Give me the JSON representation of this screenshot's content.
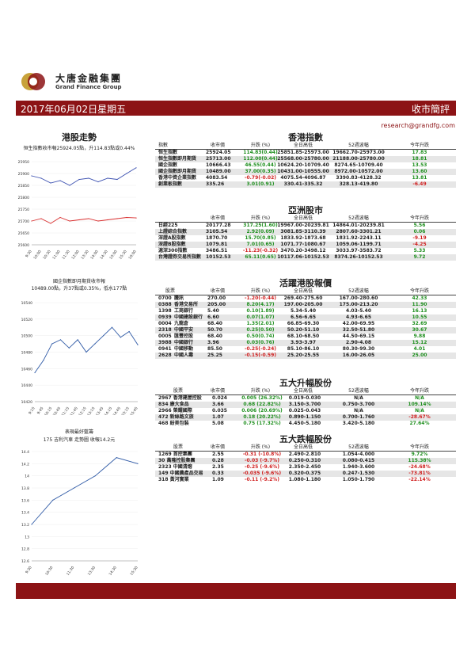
{
  "header": {
    "company_cn": "大唐金融集團",
    "company_en": "Grand Finance Group",
    "date": "2017年06月02日星期五",
    "report_title": "收市簡評",
    "email": "research@grandfg.com"
  },
  "left": {
    "hk_trend_title": "港股走勢",
    "hsi_caption": "恒生指數收市報25924.05點，升114.83點或0.44%",
    "chart1": {
      "ticks": [
        "25950",
        "25900",
        "25850",
        "25800",
        "25750",
        "25700",
        "25650",
        "25600"
      ],
      "xticks": [
        "9:30",
        "10:00",
        "10:30",
        "11:00",
        "11:30",
        "12:00",
        "13:30",
        "14:00",
        "14:30",
        "15:00",
        "15:30",
        "16:00"
      ],
      "colors": {
        "line1": "#3a4fb0",
        "line2": "#d93030"
      }
    },
    "hsce_caption1": "國企指數即月期貨收市報",
    "hsce_caption2": "10489.00點，升37點或0.35%，低水177點",
    "chart2": {
      "ticks": [
        "10540",
        "10520",
        "10500",
        "10480",
        "10460",
        "10440",
        "10420"
      ],
      "xticks": [
        "9:15",
        "9:45",
        "10:15",
        "10:45",
        "11:15",
        "11:45",
        "12:15",
        "13:15",
        "13:45",
        "14:15",
        "14:45",
        "15:15",
        "15:45"
      ]
    },
    "pick_caption1": "表現最好藍籌",
    "pick_caption2": "175 吉利汽車 走勢圖  收報14.2元",
    "chart3": {
      "ticks": [
        "14.4",
        "14.2",
        "14",
        "13.8",
        "13.6",
        "13.4",
        "13.2",
        "13",
        "12.8",
        "12.6"
      ],
      "xticks": [
        "9:30",
        "10:30",
        "11:30",
        "13:30",
        "14:30",
        "15:30"
      ]
    }
  },
  "hk_index": {
    "title": "香港指數",
    "headers": [
      "指數",
      "收市價",
      "升跌 (%)",
      "全日高低",
      "52週波幅",
      "今年升跌"
    ],
    "rows": [
      {
        "name": "恒生指數",
        "close": "25924.05",
        "chg": "114.83(0.44)",
        "range": "25851.85-25973.00",
        "w52": "19662.70-25973.00",
        "ytd": "17.83",
        "dir": "up",
        "ytddir": "up"
      },
      {
        "name": "恒生指數即月期貨",
        "close": "25713.00",
        "chg": "112.00(0.44)",
        "range": "25568.00-25780.00",
        "w52": "21188.00-25780.00",
        "ytd": "18.81",
        "dir": "up",
        "ytddir": "up"
      },
      {
        "name": "國企指數",
        "close": "10666.43",
        "chg": "46.55(0.44)",
        "range": "10624.20-10709.40",
        "w52": "8274.65-10709.40",
        "ytd": "13.53",
        "dir": "up",
        "ytddir": "up"
      },
      {
        "name": "國企指數即月期貨",
        "close": "10489.00",
        "chg": "37.00(0.35)",
        "range": "10431.00-10555.00",
        "w52": "8972.00-10572.00",
        "ytd": "13.60",
        "dir": "up",
        "ytddir": "up"
      },
      {
        "name": "香港中資企業指數",
        "close": "4083.54",
        "chg": "-0.79(-0.02)",
        "range": "4075.54-4096.87",
        "w52": "3390.83-4128.32",
        "ytd": "13.81",
        "dir": "dn",
        "ytddir": "up"
      },
      {
        "name": "創業板指數",
        "close": "335.26",
        "chg": "3.01(0.91)",
        "range": "330.41-335.32",
        "w52": "328.13-419.80",
        "ytd": "-6.49",
        "dir": "up",
        "ytddir": "dn"
      }
    ]
  },
  "asia": {
    "title": "亞洲股市",
    "headers": [
      "",
      "收市價",
      "升跌 (%)",
      "全日高低",
      "52週波幅",
      "今年升跌"
    ],
    "rows": [
      {
        "name": "日經225",
        "close": "20177.28",
        "chg": "317.25(1.60)",
        "range": "19967.00-20239.81",
        "w52": "14864.01-20239.81",
        "ytd": "5.56",
        "dir": "up",
        "ytddir": "up"
      },
      {
        "name": "上證綜合指數",
        "close": "3105.54",
        "chg": "2.92(0.09)",
        "range": "3081.85-3110.39",
        "w52": "2807.60-3301.21",
        "ytd": "0.06",
        "dir": "up",
        "ytddir": "up"
      },
      {
        "name": "深證A股指數",
        "close": "1870.70",
        "chg": "15.70(0.85)",
        "range": "1833.92-1873.68",
        "w52": "1831.92-2243.11",
        "ytd": "-9.19",
        "dir": "up",
        "ytddir": "dn"
      },
      {
        "name": "深證B股指數",
        "close": "1079.81",
        "chg": "7.01(0.65)",
        "range": "1071.77-1080.67",
        "w52": "1059.06-1199.71",
        "ytd": "-4.25",
        "dir": "up",
        "ytddir": "dn"
      },
      {
        "name": "滬深300指數",
        "close": "3486.51",
        "chg": "-11.23(-0.32)",
        "range": "3470.20-3498.12",
        "w52": "3033.97-3583.72",
        "ytd": "5.33",
        "dir": "dn",
        "ytddir": "up"
      },
      {
        "name": "台灣證券交易所指數",
        "close": "10152.53",
        "chg": "65.11(0.65)",
        "range": "10117.06-10152.53",
        "w52": "8374.26-10152.53",
        "ytd": "9.72",
        "dir": "up",
        "ytddir": "up"
      }
    ]
  },
  "active": {
    "title": "活躍港股報價",
    "headers": [
      "股票",
      "收市價",
      "升跌 (%)",
      "全日高低",
      "52週波幅",
      "今年升跌"
    ],
    "rows": [
      {
        "code": "0700",
        "name": "騰訊",
        "close": "270.00",
        "chg": "-1.20(-0.44)",
        "range": "269.40-275.60",
        "w52": "167.00-280.60",
        "ytd": "42.33",
        "dir": "dn",
        "ytddir": "up"
      },
      {
        "code": "0388",
        "name": "香港交易所",
        "close": "205.00",
        "chg": "8.20(4.17)",
        "range": "197.00-205.00",
        "w52": "175.00-213.20",
        "ytd": "11.90",
        "dir": "up",
        "ytddir": "up"
      },
      {
        "code": "1398",
        "name": "工商銀行",
        "close": "5.40",
        "chg": "0.10(1.89)",
        "range": "5.34-5.40",
        "w52": "4.03-5.40",
        "ytd": "16.13",
        "dir": "up",
        "ytddir": "up"
      },
      {
        "code": "0939",
        "name": "中國建設銀行",
        "close": "6.60",
        "chg": "0.07(1.07)",
        "range": "6.56-6.65",
        "w52": "4.93-6.65",
        "ytd": "10.55",
        "dir": "up",
        "ytddir": "up"
      },
      {
        "code": "0004",
        "name": "九龍倉",
        "close": "68.40",
        "chg": "1.35(2.01)",
        "range": "66.85-69.30",
        "w52": "42.00-69.95",
        "ytd": "32.69",
        "dir": "up",
        "ytddir": "up"
      },
      {
        "code": "2318",
        "name": "中國平安",
        "close": "50.70",
        "chg": "0.25(0.50)",
        "range": "50.20-51.10",
        "w52": "32.50-51.80",
        "ytd": "30.67",
        "dir": "up",
        "ytddir": "up"
      },
      {
        "code": "0005",
        "name": "匯豐控股",
        "close": "68.40",
        "chg": "0.50(0.74)",
        "range": "68.10-68.50",
        "w52": "44.50-69.15",
        "ytd": "9.88",
        "dir": "up",
        "ytddir": "up"
      },
      {
        "code": "3988",
        "name": "中國銀行",
        "close": "3.96",
        "chg": "0.03(0.76)",
        "range": "3.93-3.97",
        "w52": "2.90-4.08",
        "ytd": "15.12",
        "dir": "up",
        "ytddir": "up"
      },
      {
        "code": "0941",
        "name": "中國移動",
        "close": "85.50",
        "chg": "-0.25(-0.24)",
        "range": "85.10-86.10",
        "w52": "80.30-99.30",
        "ytd": "4.01",
        "dir": "dn",
        "ytddir": "up"
      },
      {
        "code": "2628",
        "name": "中國人壽",
        "close": "25.25",
        "chg": "-0.15(-0.59)",
        "range": "25.20-25.55",
        "w52": "16.00-26.05",
        "ytd": "25.00",
        "dir": "dn",
        "ytddir": "up"
      }
    ]
  },
  "gainers": {
    "title": "五大升幅股份",
    "headers": [
      "股票",
      "收市價",
      "升跌 (%)",
      "全日高低",
      "52週波幅",
      "今年升跌"
    ],
    "rows": [
      {
        "name": "2967 香港建屋控股",
        "close": "0.024",
        "chg": "0.005 (26.32%)",
        "range": "0.019-0.030",
        "w52": "N/A",
        "ytd": "N/A",
        "dir": "up",
        "ytddir": "up"
      },
      {
        "name": "834 康大食品",
        "close": "3.66",
        "chg": "0.68 (22.82%)",
        "range": "3.150-3.700",
        "w52": "0.750-3.700",
        "ytd": "109.14%",
        "dir": "up",
        "ytddir": "up"
      },
      {
        "name": "2966 榮耀國際",
        "close": "0.035",
        "chg": "0.006 (20.69%)",
        "range": "0.025-0.043",
        "w52": "N/A",
        "ytd": "N/A",
        "dir": "up",
        "ytddir": "up"
      },
      {
        "name": "472 新絲路文旅",
        "close": "1.07",
        "chg": "0.18 (20.22%)",
        "range": "0.890-1.150",
        "w52": "0.700-1.760",
        "ytd": "-28.67%",
        "dir": "up",
        "ytddir": "dn"
      },
      {
        "name": "468 紛美包裝",
        "close": "5.08",
        "chg": "0.75 (17.32%)",
        "range": "4.450-5.180",
        "w52": "3.420-5.180",
        "ytd": "27.64%",
        "dir": "up",
        "ytddir": "up"
      }
    ]
  },
  "losers": {
    "title": "五大跌幅股份",
    "headers": [
      "股票",
      "收市價",
      "升跌 (%)",
      "全日高低",
      "52週波幅",
      "今年升跌"
    ],
    "rows": [
      {
        "name": "1269 首控集團",
        "close": "2.55",
        "chg": "-0.31 (-10.8%)",
        "range": "2.490-2.810",
        "w52": "1.054-4.000",
        "ytd": "9.72%",
        "dir": "dn",
        "ytddir": "up"
      },
      {
        "name": "30 萬隆控股集團",
        "close": "0.28",
        "chg": "-0.03 (-9.7%)",
        "range": "0.250-0.310",
        "w52": "0.080-0.415",
        "ytd": "115.38%",
        "dir": "dn",
        "ytddir": "up"
      },
      {
        "name": "2323 中國清熔",
        "close": "2.35",
        "chg": "-0.25 (-9.6%)",
        "range": "2.350-2.450",
        "w52": "1.940-3.600",
        "ytd": "-24.68%",
        "dir": "dn",
        "ytddir": "dn"
      },
      {
        "name": "149 中國農產品交易",
        "close": "0.33",
        "chg": "-0.035 (-9.6%)",
        "range": "0.320-0.375",
        "w52": "0.247-1.530",
        "ytd": "-73.81%",
        "dir": "dn",
        "ytddir": "dn"
      },
      {
        "name": "318 黃河實業",
        "close": "1.09",
        "chg": "-0.11 (-9.2%)",
        "range": "1.080-1.180",
        "w52": "1.050-1.790",
        "ytd": "-22.14%",
        "dir": "dn",
        "ytddir": "dn"
      }
    ]
  },
  "chart_data": [
    {
      "type": "line",
      "title": "",
      "x": [
        "9:30",
        "10:00",
        "10:30",
        "11:00",
        "11:30",
        "12:00",
        "13:30",
        "14:00",
        "14:30",
        "15:00",
        "15:30",
        "16:00"
      ],
      "series": [
        {
          "values": [
            25890,
            25880,
            25860,
            25870,
            25850,
            25875,
            25880,
            25865,
            25880,
            25875,
            25900,
            25924
          ]
        },
        {
          "values": [
            25700,
            25710,
            25690,
            25715,
            25700,
            25705,
            25710,
            25700,
            25705,
            25710,
            25715,
            25713
          ]
        }
      ],
      "ylim": [
        25600,
        25950
      ]
    },
    {
      "type": "line",
      "title": "",
      "x": [
        "9:15",
        "9:45",
        "10:15",
        "10:45",
        "11:15",
        "11:45",
        "12:15",
        "13:15",
        "13:45",
        "14:15",
        "14:45",
        "15:15",
        "15:45"
      ],
      "series": [
        {
          "values": [
            10455,
            10470,
            10490,
            10495,
            10485,
            10495,
            10480,
            10490,
            10500,
            10510,
            10498,
            10505,
            10489
          ]
        }
      ],
      "ylim": [
        10420,
        10540
      ]
    },
    {
      "type": "line",
      "title": "",
      "x": [
        "9:30",
        "10:30",
        "11:30",
        "13:30",
        "14:30",
        "15:30"
      ],
      "series": [
        {
          "values": [
            13.2,
            13.6,
            13.8,
            14.0,
            14.3,
            14.2
          ]
        }
      ],
      "ylim": [
        12.6,
        14.4
      ]
    }
  ]
}
